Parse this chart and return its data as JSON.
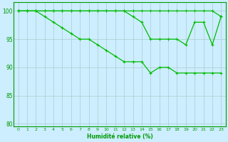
{
  "line1": {
    "x": [
      0,
      1,
      2,
      3,
      4,
      5,
      6,
      7,
      8,
      9,
      10,
      11,
      12,
      13,
      14,
      15,
      16,
      17,
      18,
      19,
      20,
      21,
      22,
      23
    ],
    "y": [
      100,
      100,
      100,
      100,
      100,
      100,
      100,
      100,
      100,
      100,
      100,
      100,
      100,
      100,
      100,
      100,
      100,
      100,
      100,
      100,
      100,
      100,
      100,
      99
    ]
  },
  "line2": {
    "x": [
      0,
      1,
      2,
      3,
      4,
      5,
      6,
      7,
      8,
      9,
      10,
      11,
      12,
      13,
      14,
      15,
      16,
      17,
      18,
      19,
      20,
      21,
      22,
      23
    ],
    "y": [
      100,
      100,
      100,
      100,
      100,
      100,
      100,
      100,
      100,
      100,
      100,
      100,
      100,
      99,
      98,
      95,
      95,
      95,
      95,
      94,
      98,
      98,
      94,
      99
    ]
  },
  "line3": {
    "x": [
      0,
      1,
      2,
      3,
      4,
      5,
      6,
      7,
      8,
      9,
      10,
      11,
      12,
      13,
      14,
      15,
      16,
      17,
      18,
      19,
      20,
      21,
      22,
      23
    ],
    "y": [
      100,
      100,
      100,
      99,
      98,
      97,
      96,
      95,
      95,
      94,
      93,
      92,
      91,
      91,
      91,
      89,
      90,
      90,
      89,
      89,
      89,
      89,
      89,
      89
    ]
  },
  "xlabel": "Humidité relative (%)",
  "xlim": [
    -0.5,
    23.5
  ],
  "ylim": [
    79.5,
    101.5
  ],
  "yticks": [
    80,
    85,
    90,
    95,
    100
  ],
  "xticks": [
    0,
    1,
    2,
    3,
    4,
    5,
    6,
    7,
    8,
    9,
    10,
    11,
    12,
    13,
    14,
    15,
    16,
    17,
    18,
    19,
    20,
    21,
    22,
    23
  ],
  "bg_color": "#cceeff",
  "grid_color": "#aacccc",
  "line_color": "#00bb00",
  "xlabel_color": "#009900",
  "tick_color": "#009900",
  "spine_color": "#009900"
}
